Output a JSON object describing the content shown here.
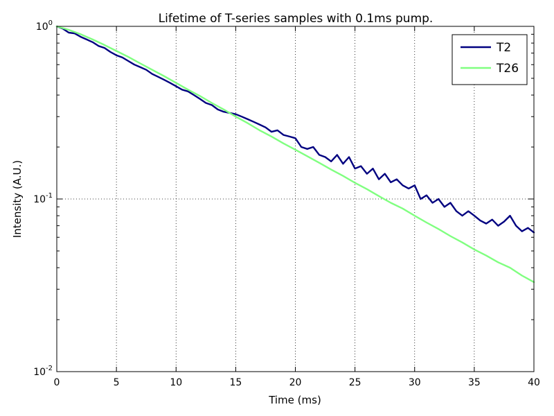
{
  "chart_data": {
    "type": "line",
    "title": "Lifetime of T-series samples with 0.1ms pump.",
    "xlabel": "Time (ms)",
    "ylabel": "Intensity (A.U.)",
    "xlim": [
      0,
      40
    ],
    "ylim": [
      0.01,
      1
    ],
    "yscale": "log",
    "grid": true,
    "legend_position": "top-right",
    "x_ticks": [
      "0",
      "5",
      "10",
      "15",
      "20",
      "25",
      "30",
      "35",
      "40"
    ],
    "y_ticks": [
      {
        "value": 1,
        "base": "10",
        "exp": "0"
      },
      {
        "value": 0.1,
        "base": "10",
        "exp": "-1"
      },
      {
        "value": 0.01,
        "base": "10",
        "exp": "-2"
      }
    ],
    "series": [
      {
        "name": "T2",
        "color": "#000080",
        "points": [
          [
            0,
            1.0
          ],
          [
            0.5,
            0.97
          ],
          [
            1,
            0.92
          ],
          [
            1.5,
            0.91
          ],
          [
            2,
            0.87
          ],
          [
            2.5,
            0.84
          ],
          [
            3,
            0.81
          ],
          [
            3.5,
            0.77
          ],
          [
            4,
            0.75
          ],
          [
            4.5,
            0.71
          ],
          [
            5,
            0.68
          ],
          [
            5.5,
            0.66
          ],
          [
            6,
            0.63
          ],
          [
            6.5,
            0.6
          ],
          [
            7,
            0.58
          ],
          [
            7.5,
            0.56
          ],
          [
            8,
            0.53
          ],
          [
            8.5,
            0.51
          ],
          [
            9,
            0.49
          ],
          [
            9.5,
            0.47
          ],
          [
            10,
            0.45
          ],
          [
            10.5,
            0.43
          ],
          [
            11,
            0.42
          ],
          [
            11.5,
            0.4
          ],
          [
            12,
            0.38
          ],
          [
            12.5,
            0.36
          ],
          [
            13,
            0.35
          ],
          [
            13.5,
            0.33
          ],
          [
            14,
            0.32
          ],
          [
            14.5,
            0.315
          ],
          [
            15,
            0.31
          ],
          [
            15.5,
            0.3
          ],
          [
            16,
            0.29
          ],
          [
            16.5,
            0.28
          ],
          [
            17,
            0.27
          ],
          [
            17.5,
            0.26
          ],
          [
            18,
            0.245
          ],
          [
            18.5,
            0.25
          ],
          [
            19,
            0.235
          ],
          [
            19.5,
            0.23
          ],
          [
            20,
            0.225
          ],
          [
            20.5,
            0.2
          ],
          [
            21,
            0.195
          ],
          [
            21.5,
            0.2
          ],
          [
            22,
            0.18
          ],
          [
            22.5,
            0.175
          ],
          [
            23,
            0.165
          ],
          [
            23.5,
            0.18
          ],
          [
            24,
            0.16
          ],
          [
            24.5,
            0.175
          ],
          [
            25,
            0.15
          ],
          [
            25.5,
            0.155
          ],
          [
            26,
            0.14
          ],
          [
            26.5,
            0.15
          ],
          [
            27,
            0.13
          ],
          [
            27.5,
            0.14
          ],
          [
            28,
            0.125
          ],
          [
            28.5,
            0.13
          ],
          [
            29,
            0.12
          ],
          [
            29.5,
            0.115
          ],
          [
            30,
            0.12
          ],
          [
            30.5,
            0.1
          ],
          [
            31,
            0.105
          ],
          [
            31.5,
            0.095
          ],
          [
            32,
            0.1
          ],
          [
            32.5,
            0.09
          ],
          [
            33,
            0.095
          ],
          [
            33.5,
            0.085
          ],
          [
            34,
            0.08
          ],
          [
            34.5,
            0.085
          ],
          [
            35,
            0.08
          ],
          [
            35.5,
            0.075
          ],
          [
            36,
            0.072
          ],
          [
            36.5,
            0.076
          ],
          [
            37,
            0.07
          ],
          [
            37.5,
            0.074
          ],
          [
            38,
            0.08
          ],
          [
            38.5,
            0.07
          ],
          [
            39,
            0.065
          ],
          [
            39.5,
            0.068
          ],
          [
            40,
            0.064
          ]
        ]
      },
      {
        "name": "T26",
        "color": "#80ff80",
        "points": [
          [
            0,
            1.0
          ],
          [
            1,
            0.955
          ],
          [
            2,
            0.9
          ],
          [
            3,
            0.84
          ],
          [
            4,
            0.78
          ],
          [
            5,
            0.72
          ],
          [
            6,
            0.665
          ],
          [
            7,
            0.61
          ],
          [
            8,
            0.56
          ],
          [
            9,
            0.515
          ],
          [
            10,
            0.47
          ],
          [
            11,
            0.43
          ],
          [
            12,
            0.395
          ],
          [
            13,
            0.36
          ],
          [
            14,
            0.33
          ],
          [
            15,
            0.3
          ],
          [
            16,
            0.275
          ],
          [
            17,
            0.25
          ],
          [
            18,
            0.23
          ],
          [
            19,
            0.21
          ],
          [
            20,
            0.193
          ],
          [
            21,
            0.177
          ],
          [
            22,
            0.162
          ],
          [
            23,
            0.148
          ],
          [
            24,
            0.136
          ],
          [
            25,
            0.124
          ],
          [
            26,
            0.114
          ],
          [
            27,
            0.104
          ],
          [
            28,
            0.095
          ],
          [
            29,
            0.088
          ],
          [
            30,
            0.08
          ],
          [
            31,
            0.073
          ],
          [
            32,
            0.067
          ],
          [
            33,
            0.061
          ],
          [
            34,
            0.056
          ],
          [
            35,
            0.051
          ],
          [
            36,
            0.047
          ],
          [
            37,
            0.043
          ],
          [
            38,
            0.04
          ],
          [
            39,
            0.036
          ],
          [
            40,
            0.033
          ]
        ]
      }
    ]
  }
}
